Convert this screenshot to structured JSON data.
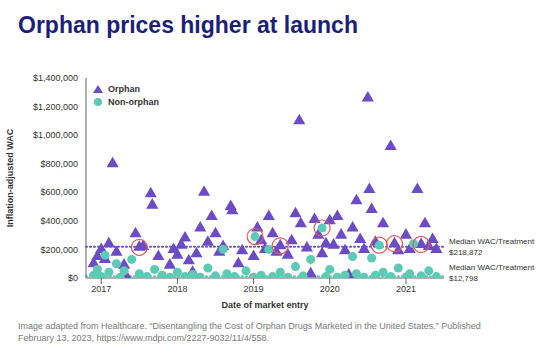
{
  "chart_data": {
    "type": "scatter",
    "title": "Orphan prices higher at launch",
    "x_label": "Date of market entry",
    "y_label": "Inflation-adjusted WAC",
    "caption": "Image adapted from Healthcare. “Disentangling the Cost of Orphan Drugs Marketed in the United States.” Published February 13, 2023, https://www.mdpi.com/2227-9032/11/4/558.",
    "xlim": [
      2016.8,
      2021.5
    ],
    "xticks": [
      2017,
      2018,
      2019,
      2020,
      2021
    ],
    "ylim": [
      0,
      1400000
    ],
    "yticks": [
      {
        "value": 0,
        "label": "$0"
      },
      {
        "value": 200000,
        "label": "$200,000"
      },
      {
        "value": 400000,
        "label": "$400,000"
      },
      {
        "value": 600000,
        "label": "$600,000"
      },
      {
        "value": 800000,
        "label": "$800,000"
      },
      {
        "value": 1000000,
        "label": "$1,000,000"
      },
      {
        "value": 1200000,
        "label": "$1,200,000"
      },
      {
        "value": 1400000,
        "label": "$1,400,000"
      }
    ],
    "grid": false,
    "legend": "upper left",
    "series": [
      {
        "name": "Orphan",
        "color": "#6c4bc6",
        "marker": "triangle",
        "x": [
          2016.9,
          2016.95,
          2017.0,
          2017.05,
          2017.1,
          2017.15,
          2017.2,
          2017.3,
          2017.45,
          2017.5,
          2017.55,
          2017.65,
          2017.67,
          2017.75,
          2017.9,
          2017.95,
          2018.0,
          2018.05,
          2018.1,
          2018.15,
          2018.25,
          2018.3,
          2018.35,
          2018.4,
          2018.45,
          2018.5,
          2018.55,
          2018.6,
          2018.7,
          2018.72,
          2018.8,
          2018.85,
          2019.0,
          2019.05,
          2019.1,
          2019.15,
          2019.2,
          2019.25,
          2019.3,
          2019.35,
          2019.45,
          2019.5,
          2019.55,
          2019.6,
          2019.62,
          2019.7,
          2019.8,
          2019.85,
          2019.9,
          2019.95,
          2020.0,
          2020.05,
          2020.1,
          2020.15,
          2020.2,
          2020.3,
          2020.35,
          2020.4,
          2020.45,
          2020.5,
          2020.52,
          2020.55,
          2020.6,
          2020.7,
          2020.8,
          2020.85,
          2020.9,
          2021.0,
          2021.05,
          2021.15,
          2021.2,
          2021.25,
          2021.3,
          2021.35,
          2021.4,
          2017.32,
          2018.2,
          2019.75,
          2020.25
        ],
        "values": [
          100000,
          150000,
          200000,
          130000,
          240000,
          800000,
          180000,
          90000,
          310000,
          215000,
          220000,
          590000,
          510000,
          150000,
          90000,
          200000,
          160000,
          230000,
          280000,
          120000,
          170000,
          350000,
          600000,
          250000,
          430000,
          310000,
          180000,
          220000,
          500000,
          470000,
          100000,
          190000,
          150000,
          350000,
          260000,
          200000,
          430000,
          310000,
          180000,
          225000,
          160000,
          260000,
          450000,
          1100000,
          380000,
          210000,
          410000,
          300000,
          170000,
          240000,
          400000,
          230000,
          430000,
          300000,
          190000,
          350000,
          540000,
          270000,
          200000,
          1260000,
          620000,
          480000,
          250000,
          380000,
          920000,
          240000,
          190000,
          300000,
          200000,
          620000,
          235000,
          380000,
          220000,
          270000,
          200000,
          20000,
          40000,
          30000,
          20000
        ]
      },
      {
        "name": "Non-orphan",
        "color": "#5ccbb5",
        "marker": "circle",
        "x": [
          2016.9,
          2016.95,
          2017.0,
          2017.05,
          2017.1,
          2017.2,
          2017.25,
          2017.3,
          2017.4,
          2017.5,
          2017.6,
          2017.7,
          2017.8,
          2017.9,
          2018.0,
          2018.1,
          2018.2,
          2018.3,
          2018.4,
          2018.5,
          2018.6,
          2018.65,
          2018.75,
          2018.9,
          2019.0,
          2019.02,
          2019.1,
          2019.2,
          2019.25,
          2019.35,
          2019.45,
          2019.55,
          2019.65,
          2019.75,
          2019.9,
          2019.95,
          2020.0,
          2020.1,
          2020.2,
          2020.3,
          2020.35,
          2020.45,
          2020.55,
          2020.6,
          2020.65,
          2020.7,
          2020.8,
          2020.9,
          2021.0,
          2021.05,
          2021.1,
          2021.2,
          2021.3,
          2021.4
        ],
        "values": [
          20000,
          60000,
          10000,
          160000,
          40000,
          100000,
          5000,
          50000,
          130000,
          30000,
          10000,
          60000,
          20000,
          5000,
          40000,
          10000,
          25000,
          5000,
          70000,
          15000,
          200000,
          30000,
          10000,
          50000,
          5000,
          290000,
          20000,
          200000,
          10000,
          40000,
          5000,
          80000,
          15000,
          130000,
          350000,
          10000,
          60000,
          5000,
          20000,
          150000,
          30000,
          5000,
          140000,
          20000,
          230000,
          40000,
          10000,
          70000,
          5000,
          30000,
          240000,
          15000,
          50000,
          10000
        ]
      }
    ],
    "highlighted": {
      "color": "#e8585a",
      "marker": "circle",
      "x": [
        2017.5,
        2019.02,
        2019.35,
        2019.9,
        2020.65,
        2020.85,
        2021.2
      ],
      "values": [
        215000,
        290000,
        225000,
        350000,
        230000,
        240000,
        235000
      ]
    },
    "median_lines": [
      {
        "text": "Median WAC/Treatment",
        "value": 218872,
        "value_label": "$218,872",
        "color": "#6c4bc6"
      },
      {
        "text": "Median WAC/Treatment",
        "value": 12798,
        "value_label": "$12,798",
        "color": "#5ccbb5"
      }
    ]
  }
}
